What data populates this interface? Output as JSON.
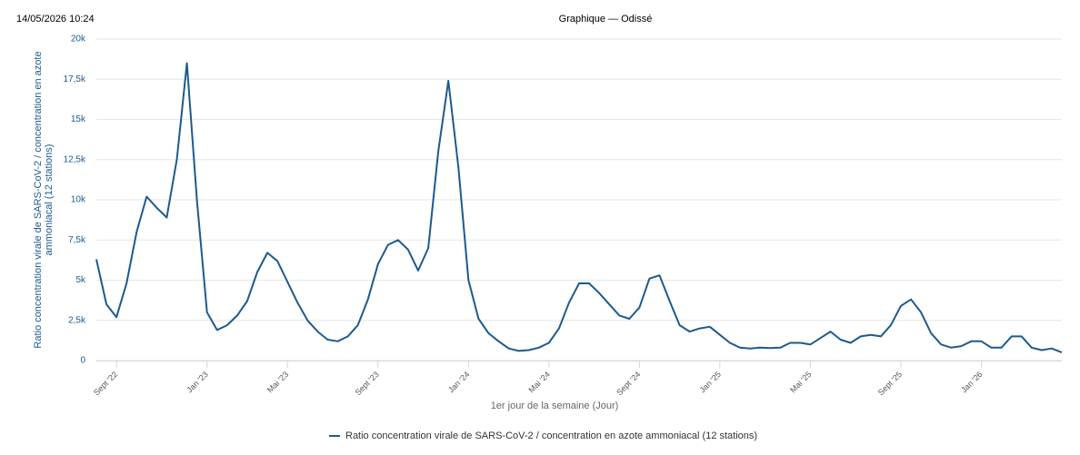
{
  "header": {
    "timestamp": "14/05/2026 10:24",
    "title": "Graphique — Odissé"
  },
  "chart_data": {
    "type": "line",
    "ylabel": [
      "Ratio concentration virale de SARS-CoV-2 / concentration en azote",
      "ammoniacal (12 stations)"
    ],
    "xlabel": "1er jour de la semaine (Jour)",
    "categories": [
      null,
      null,
      "Sept '22",
      null,
      null,
      null,
      null,
      null,
      null,
      null,
      null,
      "Jan '23",
      null,
      null,
      null,
      null,
      null,
      null,
      null,
      "Mai '23",
      null,
      null,
      null,
      null,
      null,
      null,
      null,
      null,
      "Sept '23",
      null,
      null,
      null,
      null,
      null,
      null,
      null,
      null,
      "Jan '24",
      null,
      null,
      null,
      null,
      null,
      null,
      null,
      "Mai '24",
      null,
      null,
      null,
      null,
      null,
      null,
      null,
      null,
      "Sept '24",
      null,
      null,
      null,
      null,
      null,
      null,
      null,
      "Jan '25",
      null,
      null,
      null,
      null,
      null,
      null,
      null,
      null,
      "Mai '25",
      null,
      null,
      null,
      null,
      null,
      null,
      null,
      null,
      "Sept '25",
      null,
      null,
      null,
      null,
      null,
      null,
      null,
      "Jan '26",
      null,
      null,
      null,
      null,
      null,
      null,
      null,
      null
    ],
    "series": [
      {
        "name": "Ratio concentration virale de SARS-CoV-2 / concentration en azote ammoniacal (12 stations)",
        "color": "#1d5a8e",
        "values": [
          6300,
          3500,
          2700,
          4800,
          8000,
          10200,
          9500,
          8900,
          12500,
          18500,
          10000,
          3000,
          1900,
          2200,
          2800,
          3700,
          5500,
          6700,
          6200,
          4900,
          3600,
          2500,
          1800,
          1300,
          1200,
          1500,
          2200,
          3800,
          6000,
          7200,
          7500,
          6900,
          5600,
          7000,
          13000,
          17400,
          12000,
          5000,
          2600,
          1700,
          1200,
          750,
          600,
          650,
          800,
          1100,
          2000,
          3600,
          4800,
          4800,
          4200,
          3500,
          2800,
          2600,
          3300,
          5100,
          5300,
          3700,
          2200,
          1800,
          2000,
          2100,
          1600,
          1100,
          800,
          750,
          800,
          780,
          800,
          1100,
          1100,
          1000,
          1400,
          1800,
          1300,
          1100,
          1500,
          1600,
          1500,
          2200,
          3400,
          3800,
          3000,
          1700,
          1000,
          800,
          900,
          1200,
          1200,
          800,
          800,
          1500,
          1500,
          800,
          650,
          750,
          500
        ]
      }
    ],
    "ylim": [
      0,
      20000
    ],
    "yticks": [
      0,
      {
        "value": 2500,
        "label": "2,5k"
      },
      {
        "value": 5000,
        "label": "5k"
      },
      {
        "value": 7500,
        "label": "7,5k"
      },
      {
        "value": 10000,
        "label": "10k"
      },
      {
        "value": 12500,
        "label": "12,5k"
      },
      {
        "value": 15000,
        "label": "15k"
      },
      {
        "value": 17500,
        "label": "17,5k"
      },
      {
        "value": 20000,
        "label": "20k"
      }
    ],
    "grid": true,
    "legend": "bottom"
  }
}
